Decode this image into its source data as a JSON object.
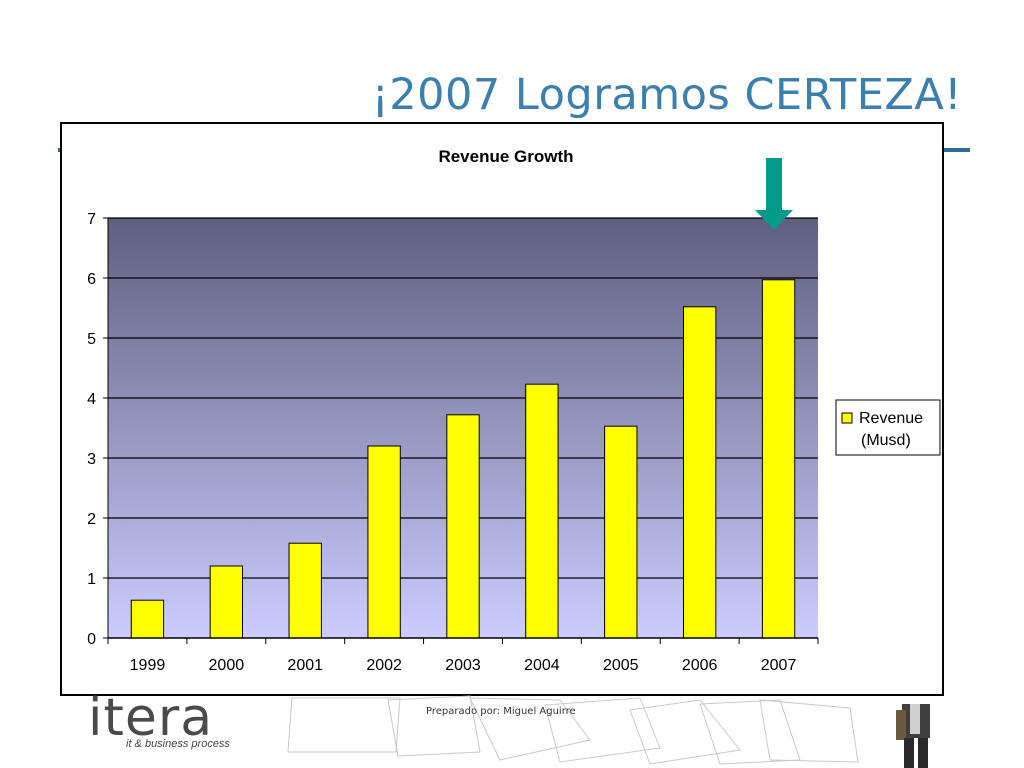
{
  "slide": {
    "title": "¡2007 Logramos CERTEZA!",
    "footer": "Preparado por: Miguel Aguirre",
    "logo_text": "itera",
    "logo_tagline": "it & business process"
  },
  "colors": {
    "title": "#3a7fae",
    "rule": "#2f6b97",
    "bar_fill": "#ffff00",
    "plot_top": "#5f5f7e",
    "plot_bottom": "#ccccff",
    "arrow": "#009b8a"
  },
  "chart_data": {
    "type": "bar",
    "title": "Revenue Growth",
    "xlabel": "",
    "ylabel": "",
    "categories": [
      "1999",
      "2000",
      "2001",
      "2002",
      "2003",
      "2004",
      "2005",
      "2006",
      "2007"
    ],
    "series": [
      {
        "name": "Revenue (Musd)",
        "values": [
          0.63,
          1.2,
          1.58,
          3.2,
          3.72,
          4.23,
          3.53,
          5.52,
          5.97
        ]
      }
    ],
    "ylim": [
      0,
      7
    ],
    "yticks": [
      "0",
      "1",
      "2",
      "3",
      "4",
      "5",
      "6",
      "7"
    ],
    "grid": true,
    "legend": {
      "position": "right",
      "lines": [
        "Revenue",
        "(Musd)"
      ]
    },
    "annotation": {
      "type": "arrow",
      "target_category": "2007",
      "icon": "arrow-down-icon"
    }
  }
}
